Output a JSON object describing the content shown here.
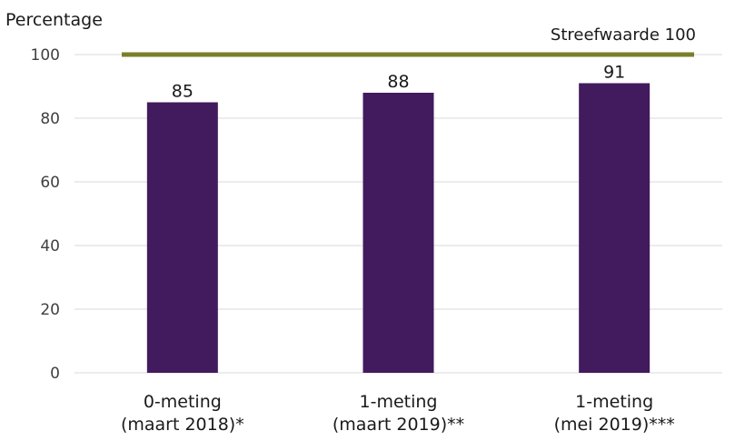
{
  "chart_data": {
    "type": "bar",
    "ylabel": "Percentage",
    "ylim": [
      0,
      100
    ],
    "yticks": [
      0,
      20,
      40,
      60,
      80,
      100
    ],
    "grid": true,
    "categories": [
      [
        "0-meting",
        "(maart 2018)*"
      ],
      [
        "1-meting",
        "(maart 2019)**"
      ],
      [
        "1-meting",
        "(mei 2019)***"
      ]
    ],
    "values": [
      85,
      88,
      91
    ],
    "data_labels": [
      "85",
      "88",
      "91"
    ],
    "target": {
      "value": 100,
      "label": "Streefwaarde 100",
      "color": "#7a7f2a"
    },
    "bar_color": "#421a5e",
    "grid_color": "#d9d9d9"
  }
}
